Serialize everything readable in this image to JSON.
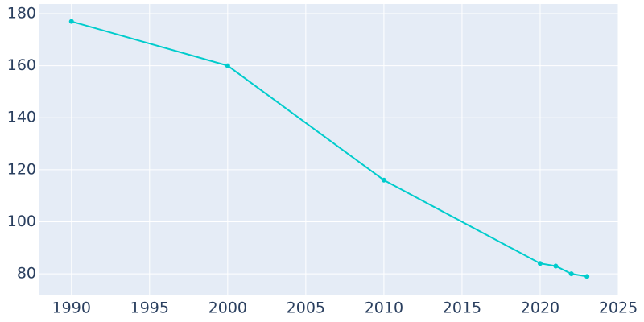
{
  "chart_data": {
    "type": "line",
    "x": [
      1990,
      2000,
      2010,
      2020,
      2021,
      2022,
      2023
    ],
    "series": [
      {
        "color": "#00cccc",
        "values": [
          177,
          160,
          116,
          84,
          83,
          80,
          79
        ]
      }
    ],
    "xlim": [
      1987.9,
      2025
    ],
    "xticks": [
      1990,
      1995,
      2000,
      2005,
      2010,
      2015,
      2020,
      2025
    ],
    "ylim": [
      72,
      183.7
    ],
    "yticks": [
      80,
      100,
      120,
      140,
      160,
      180
    ],
    "grid": true,
    "background": "#e5ecf6"
  }
}
